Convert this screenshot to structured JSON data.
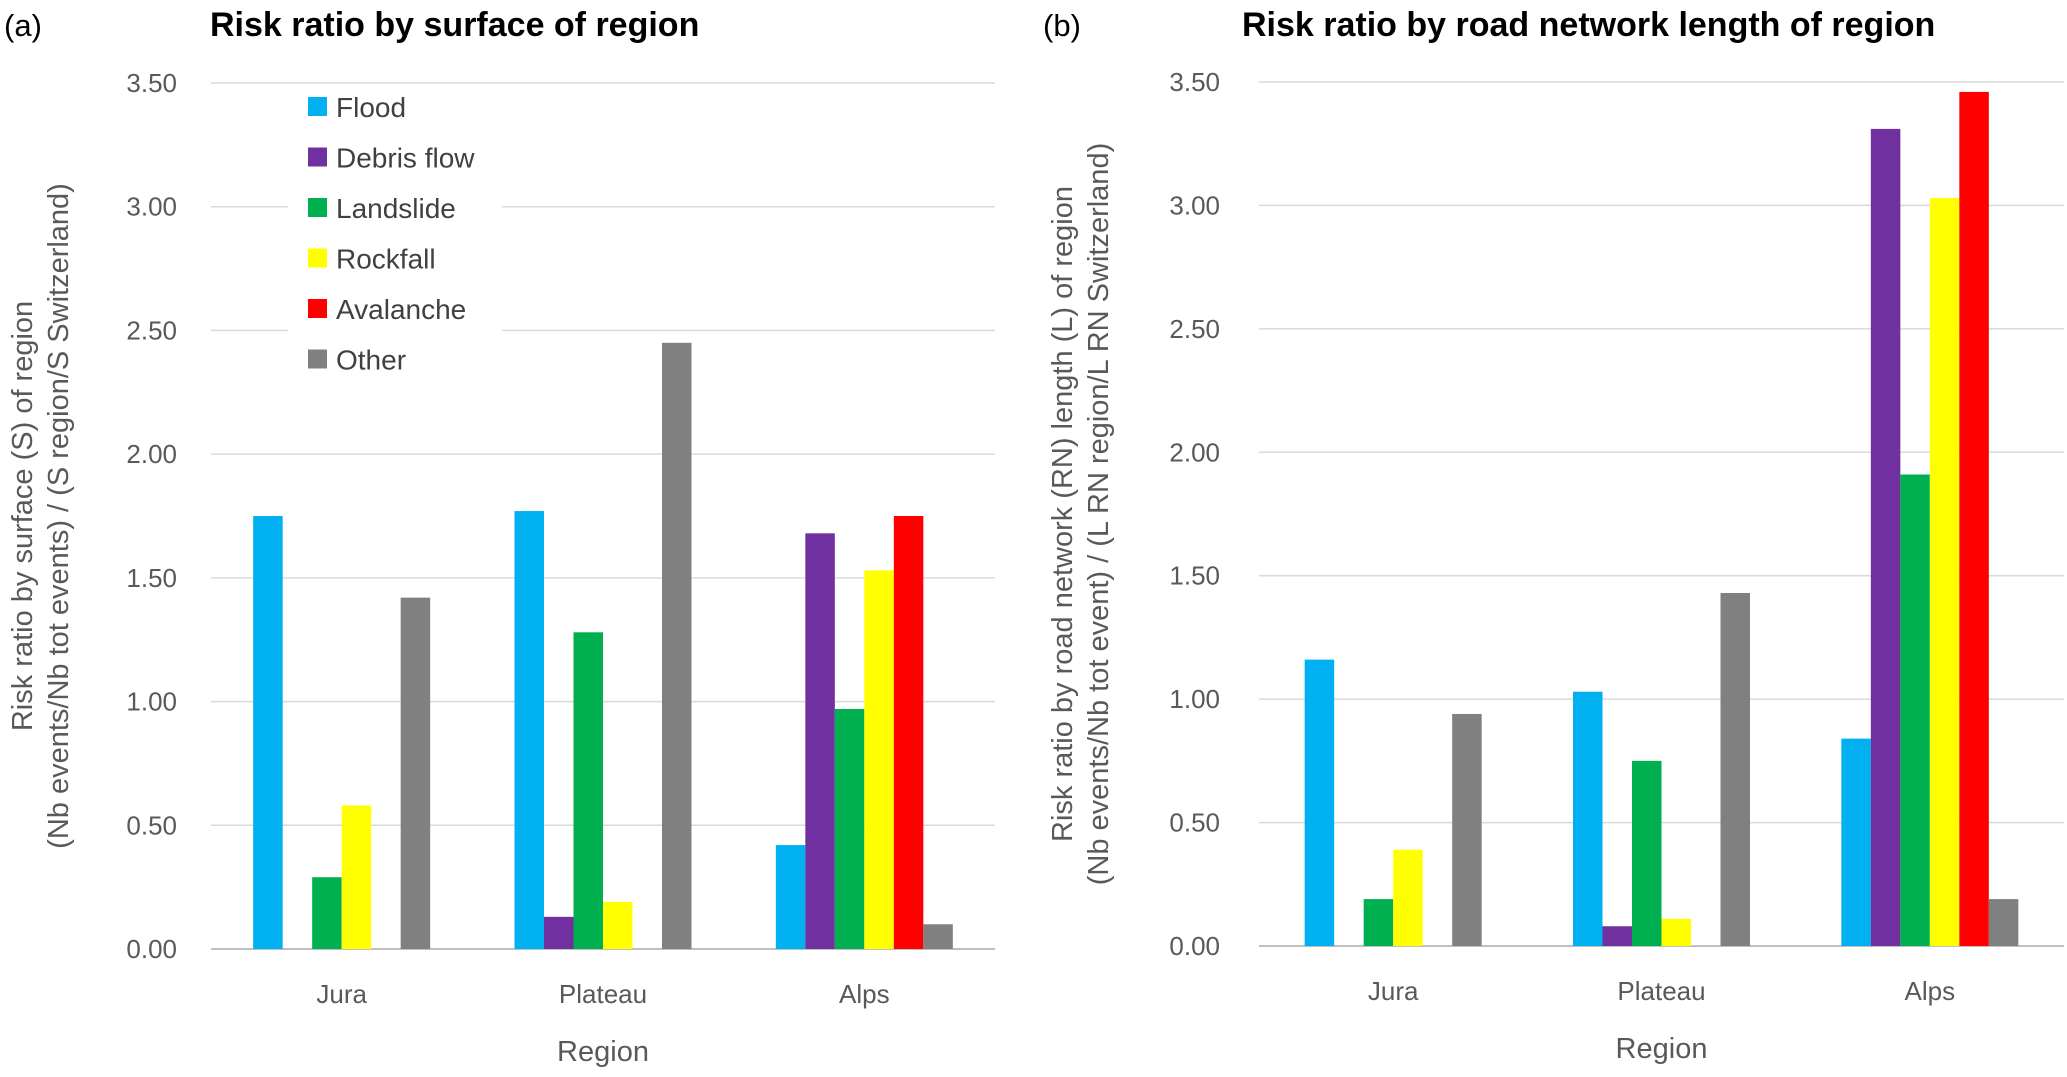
{
  "chart_data": [
    {
      "type": "bar",
      "panel_label": "(a)",
      "title": "Risk ratio by surface of region",
      "xlabel": "Region",
      "ylabel": [
        "Risk ratio by surface (S) of region",
        "(Nb events/Nb tot events) / (S region/S Switzerland)"
      ],
      "ylim": [
        0,
        3.5
      ],
      "yticks": [
        "0.00",
        "0.50",
        "1.00",
        "1.50",
        "2.00",
        "2.50",
        "3.00",
        "3.50"
      ],
      "grid": true,
      "legend": "top-left",
      "categories": [
        "Jura",
        "Plateau",
        "Alps"
      ],
      "series": [
        {
          "name": "Flood",
          "color": "#00B0F0",
          "values": [
            1.75,
            1.77,
            0.42
          ]
        },
        {
          "name": "Debris flow",
          "color": "#7030A0",
          "values": [
            0,
            0.13,
            1.68
          ]
        },
        {
          "name": "Landslide",
          "color": "#00B050",
          "values": [
            0.29,
            1.28,
            0.97
          ]
        },
        {
          "name": "Rockfall",
          "color": "#FFFF00",
          "values": [
            0.58,
            0.19,
            1.53
          ]
        },
        {
          "name": "Avalanche",
          "color": "#FF0000",
          "values": [
            0,
            0,
            1.75
          ]
        },
        {
          "name": "Other",
          "color": "#808080",
          "values": [
            1.42,
            2.45,
            0.1
          ]
        }
      ]
    },
    {
      "type": "bar",
      "panel_label": "(b)",
      "title": "Risk ratio by road network length of region",
      "xlabel": "Region",
      "ylabel": [
        "Risk ratio by road network (RN) length (L) of region",
        "(Nb events/Nb tot event) / (L RN region/L RN Switzerland)"
      ],
      "ylim": [
        0,
        3.5
      ],
      "yticks": [
        "0.00",
        "0.50",
        "1.00",
        "1.50",
        "2.00",
        "2.50",
        "3.00",
        "3.50"
      ],
      "grid": true,
      "categories": [
        "Jura",
        "Plateau",
        "Alps"
      ],
      "series": [
        {
          "name": "Flood",
          "color": "#00B0F0",
          "values": [
            1.16,
            1.03,
            0.84
          ]
        },
        {
          "name": "Debris flow",
          "color": "#7030A0",
          "values": [
            0,
            0.08,
            3.31
          ]
        },
        {
          "name": "Landslide",
          "color": "#00B050",
          "values": [
            0.19,
            0.75,
            1.91
          ]
        },
        {
          "name": "Rockfall",
          "color": "#FFFF00",
          "values": [
            0.39,
            0.11,
            3.03
          ]
        },
        {
          "name": "Avalanche",
          "color": "#FF0000",
          "values": [
            0,
            0,
            3.46
          ]
        },
        {
          "name": "Other",
          "color": "#808080",
          "values": [
            0.94,
            1.43,
            0.19
          ]
        }
      ]
    }
  ]
}
